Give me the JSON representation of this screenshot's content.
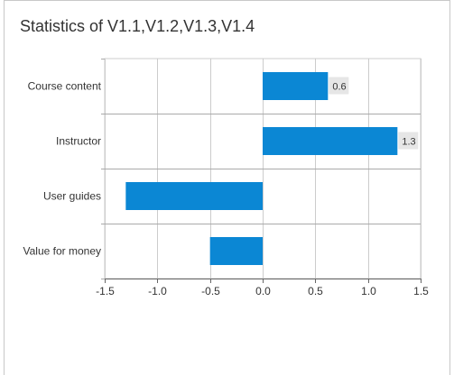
{
  "chart_data": {
    "type": "bar",
    "orientation": "horizontal",
    "title": "Statistics of V1.1,V1.2,V1.3,V1.4",
    "categories": [
      "Course content",
      "Instructor",
      "User guides",
      "Value for money"
    ],
    "values": [
      0.62,
      1.28,
      -1.3,
      -0.5
    ],
    "data_labels": [
      "0.6",
      "1.3",
      "",
      ""
    ],
    "xlim": [
      -1.5,
      1.5
    ],
    "xticks": [
      -1.5,
      -1.0,
      -0.5,
      0.0,
      0.5,
      1.0,
      1.5
    ],
    "xtick_labels": [
      "-1.5",
      "-1.0",
      "-0.5",
      "0.0",
      "0.5",
      "1.0",
      "1.5"
    ],
    "grid": true,
    "bar_color": "#0b87d4"
  }
}
